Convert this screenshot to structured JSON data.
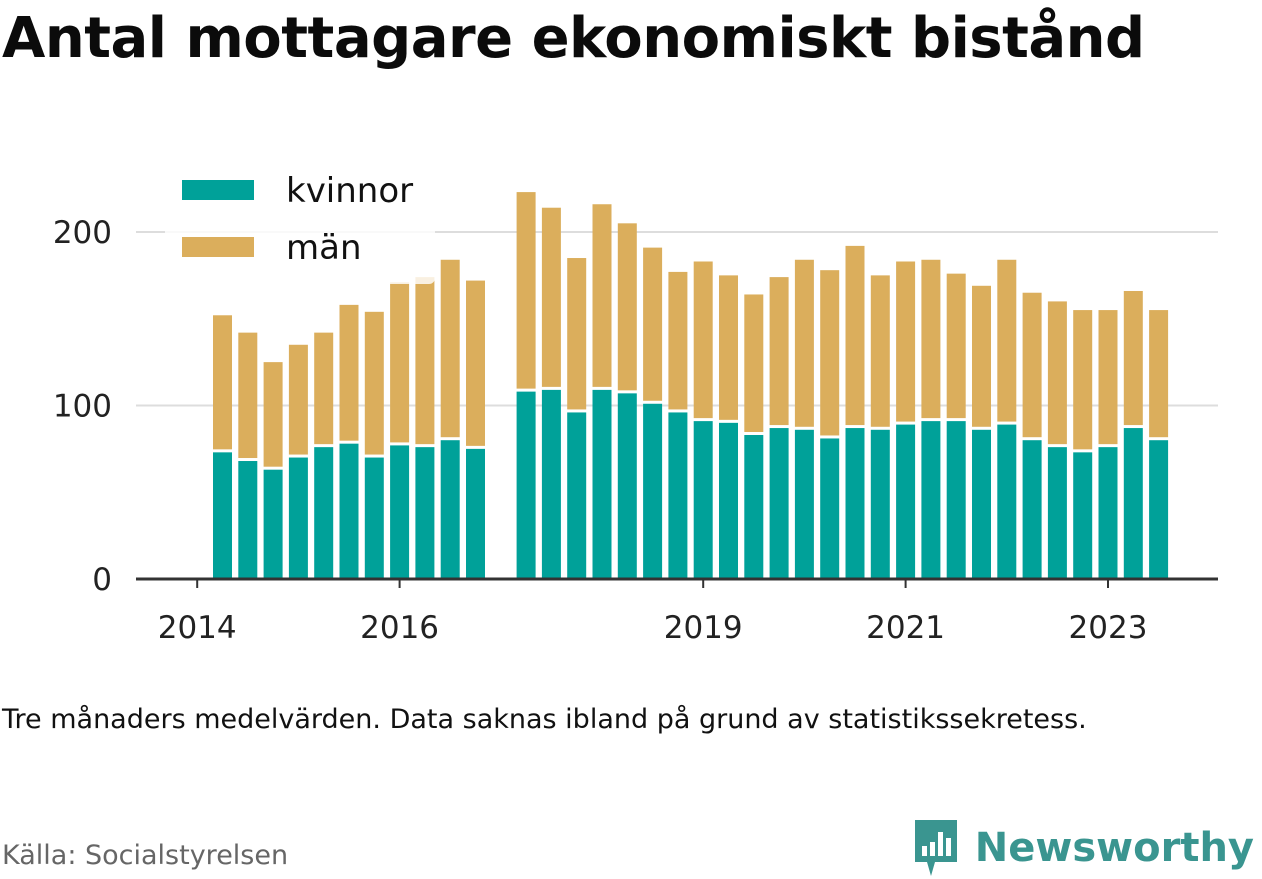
{
  "title": "Antal mottagare ekonomiskt bistånd",
  "note": "Tre månaders medelvärden. Data saknas ibland på grund av statistikssekretess.",
  "source": "Källa: Socialstyrelsen",
  "brand": {
    "name": "Newsworthy",
    "icon": "newsworthy-logo-icon",
    "color": "#3a9590"
  },
  "chart_data": {
    "type": "bar",
    "stacked": true,
    "grid": true,
    "legend_position": "top-left",
    "ylim": [
      0,
      230
    ],
    "y_ticks": [
      0,
      100,
      200
    ],
    "x_ticks": [
      {
        "label": "2014",
        "index": -1
      },
      {
        "label": "2016",
        "index": 7
      },
      {
        "label": "2019",
        "index": 19
      },
      {
        "label": "2021",
        "index": 27
      },
      {
        "label": "2023",
        "index": 35
      }
    ],
    "slots": 40,
    "colors": {
      "kvinnor": "#00a199",
      "män": "#dbae5c"
    },
    "series": [
      {
        "name": "kvinnor",
        "values": [
          73,
          68,
          63,
          70,
          76,
          78,
          70,
          77,
          76,
          80,
          75,
          null,
          108,
          109,
          96,
          109,
          107,
          101,
          96,
          91,
          90,
          83,
          87,
          86,
          81,
          87,
          86,
          89,
          91,
          91,
          86,
          89,
          80,
          76,
          73,
          76,
          87,
          80
        ]
      },
      {
        "name": "män",
        "values": [
          79,
          74,
          62,
          65,
          66,
          80,
          84,
          94,
          98,
          104,
          97,
          null,
          115,
          105,
          89,
          107,
          98,
          90,
          81,
          92,
          85,
          81,
          87,
          98,
          97,
          105,
          89,
          94,
          93,
          85,
          83,
          95,
          85,
          84,
          82,
          79,
          79,
          75
        ]
      }
    ],
    "xlabel": "",
    "ylabel": ""
  }
}
